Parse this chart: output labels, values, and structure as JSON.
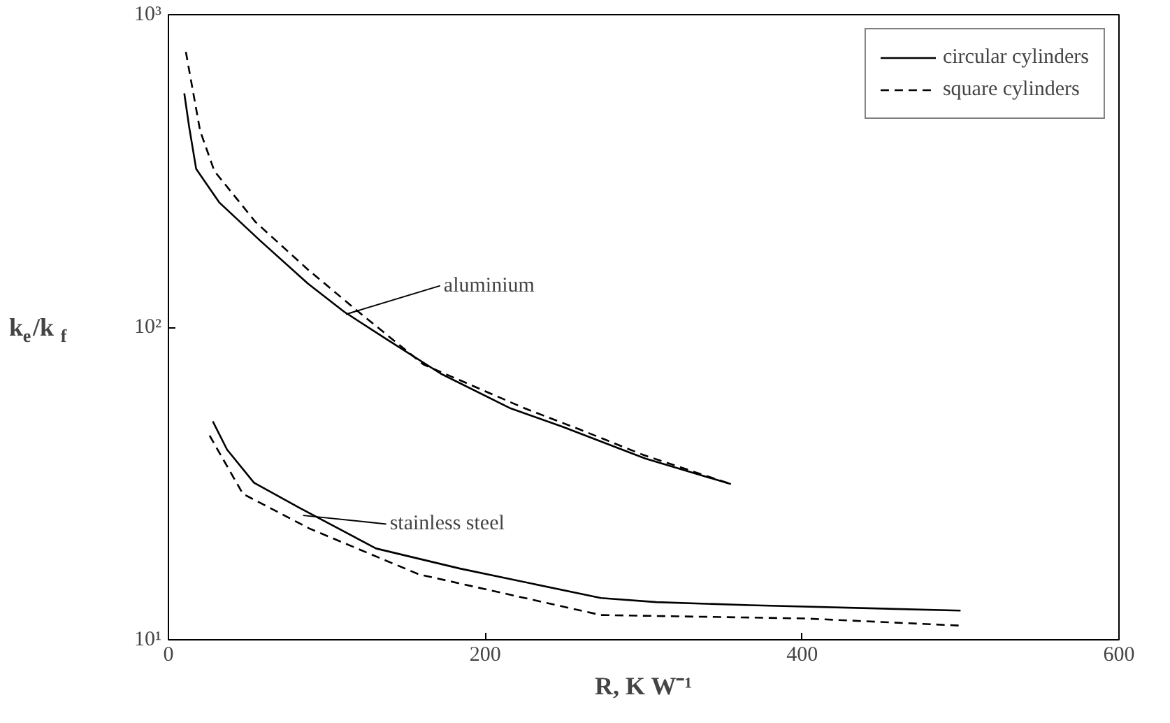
{
  "chart_data": {
    "type": "line",
    "xlabel": "R, K W⁻¹",
    "ylabel": "k$_{e}$/k$_{f}$",
    "log": "y",
    "grid": false,
    "legend": "top right",
    "xlim": [
      0,
      600
    ],
    "ylim": [
      10,
      1000
    ],
    "xticks": [
      0,
      200,
      400,
      600
    ],
    "yticks": [
      {
        "value": 10,
        "label": "10¹"
      },
      {
        "value": 100,
        "label": "10²"
      },
      {
        "value": 1000,
        "label": "10³"
      }
    ],
    "series": [
      {
        "name": "circular cylinders",
        "color": "#000000",
        "line_style": "solid",
        "x": [
          10,
          13,
          17.5,
          32,
          58,
          88,
          111,
          137,
          172,
          216,
          249,
          301,
          355
        ],
        "values": [
          560,
          440,
          321,
          251,
          189,
          138,
          112,
          92,
          71,
          55,
          48,
          38,
          31.5
        ]
      },
      {
        "name": "square cylinders",
        "color": "#000000",
        "line_style": "dashed",
        "x": [
          11,
          20,
          29,
          55,
          88,
          120,
          161,
          225,
          260,
          300,
          355
        ],
        "values": [
          760,
          425,
          316,
          217,
          153,
          112,
          76,
          55,
          47,
          39,
          31.5
        ]
      },
      {
        "color": "#000000",
        "line_style": "solid",
        "x": [
          28,
          37,
          54,
          83,
          131,
          184,
          273,
          308,
          367,
          500
        ],
        "values": [
          50,
          40.6,
          31.8,
          26.4,
          19.6,
          16.9,
          13.6,
          13.2,
          12.9,
          12.4
        ]
      },
      {
        "color": "#000000",
        "line_style": "dashed",
        "x": [
          26,
          47,
          89,
          158,
          273,
          402,
          500
        ],
        "values": [
          45,
          29.3,
          22.7,
          16.2,
          12,
          11.7,
          11.1
        ]
      }
    ],
    "annotations": [
      {
        "text": "aluminium",
        "x": 112,
        "y": 110
      },
      {
        "text": "stainless steel",
        "x": 85,
        "y": 25
      }
    ]
  }
}
